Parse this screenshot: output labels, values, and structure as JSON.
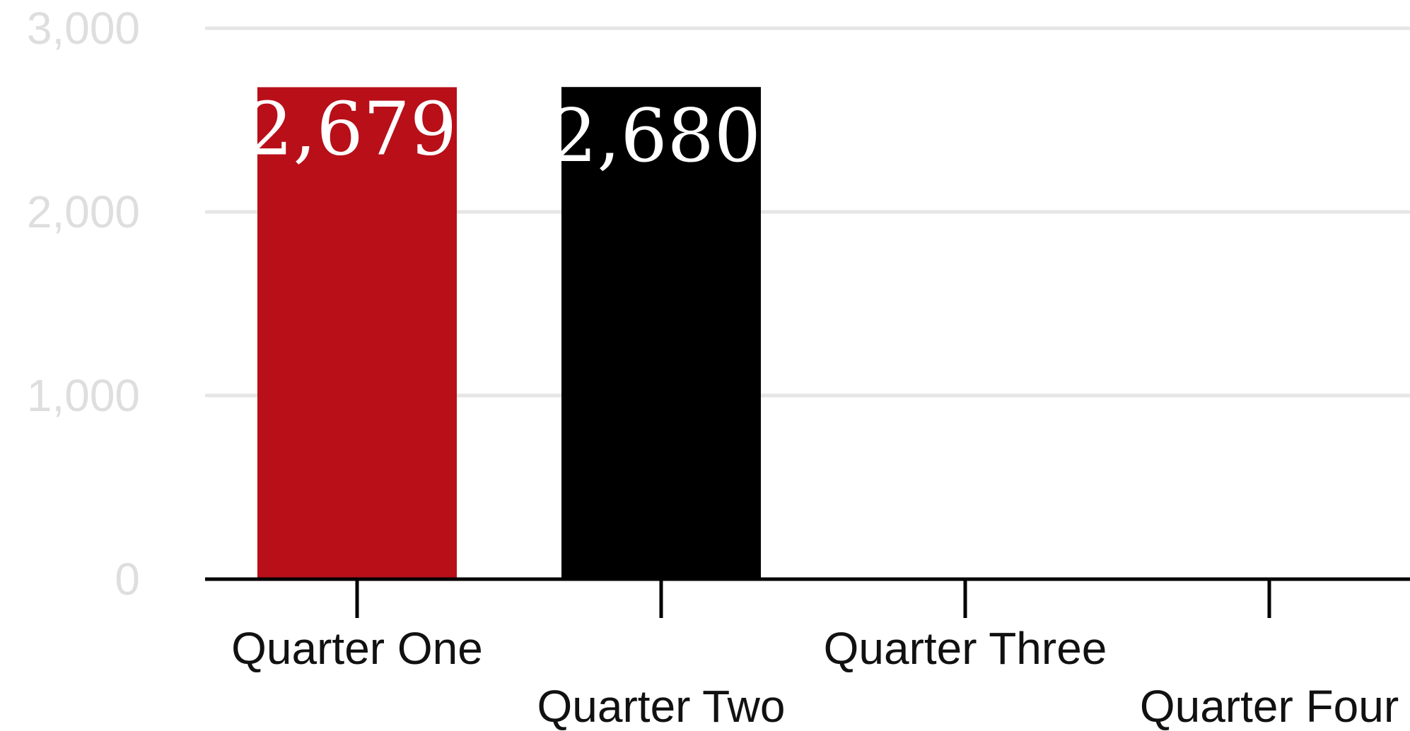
{
  "chart_data": {
    "type": "bar",
    "categories": [
      "Quarter One",
      "Quarter Two",
      "Quarter Three",
      "Quarter Four"
    ],
    "values": [
      2679,
      2680,
      null,
      null
    ],
    "value_labels": [
      "2,679",
      "2,680",
      "",
      ""
    ],
    "bar_colors": [
      "#b80f19",
      "#000000",
      null,
      null
    ],
    "ylim": [
      0,
      3000
    ],
    "yticks": [
      0,
      1000,
      2000,
      3000
    ],
    "ytick_labels": [
      "0",
      "1,000",
      "2,000",
      "3,000"
    ],
    "grid": true,
    "title": "",
    "xlabel": "",
    "ylabel": ""
  }
}
